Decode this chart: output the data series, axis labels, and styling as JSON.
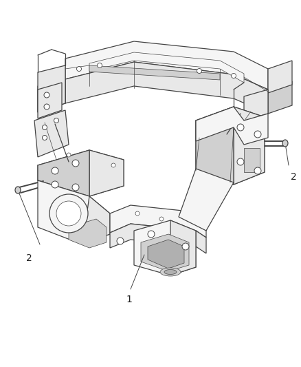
{
  "background_color": "#ffffff",
  "line_color": "#444444",
  "text_color": "#222222",
  "callout_fontsize": 10,
  "lw_main": 0.9,
  "lw_thin": 0.5,
  "lw_thick": 1.4,
  "face_light": "#f5f5f5",
  "face_mid": "#e8e8e8",
  "face_dark": "#d0d0d0",
  "face_darkest": "#b0b0b0"
}
